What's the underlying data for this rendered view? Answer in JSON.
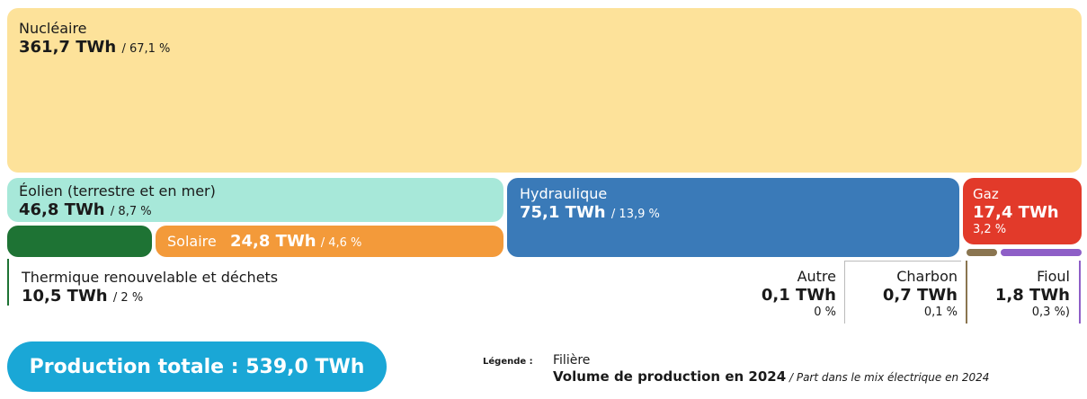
{
  "chart_data": {
    "type": "treemap",
    "unit": "TWh",
    "items": [
      {
        "name": "Nucléaire",
        "value": 361.7,
        "value_label": "361,7 TWh",
        "share_label": "/ 67,1 %",
        "color": "#fde29a"
      },
      {
        "name": "Éolien (terrestre et en mer)",
        "value": 46.8,
        "value_label": "46,8 TWh",
        "share_label": "/ 8,7 %",
        "color": "#a7e8d9"
      },
      {
        "name": "Hydraulique",
        "value": 75.1,
        "value_label": "75,1 TWh",
        "share_label": "/ 13,9 %",
        "color": "#3a7ab8"
      },
      {
        "name": "Gaz",
        "value": 17.4,
        "value_label": "17,4 TWh",
        "share_label": "3,2 %",
        "color": "#e23a2a"
      },
      {
        "name": "Solaire",
        "value": 24.8,
        "value_label": "24,8 TWh",
        "share_label": "/ 4,6 %",
        "color": "#f39a3a"
      },
      {
        "name": "Thermique renouvelable et déchets",
        "value": 10.5,
        "value_label": "10,5 TWh",
        "share_label": "/ 2 %",
        "color": "#1e7334"
      },
      {
        "name": "Autre",
        "value": 0.1,
        "value_label": "0,1 TWh",
        "share_label": "0 %",
        "color": "#ffffff"
      },
      {
        "name": "Charbon",
        "value": 0.7,
        "value_label": "0,7 TWh",
        "share_label": "0,1 %",
        "color": "#8a7550"
      },
      {
        "name": "Fioul",
        "value": 1.8,
        "value_label": "1,8 TWh",
        "share_label": "0,3 %)",
        "color": "#8e5fc7"
      }
    ]
  },
  "total": {
    "label": "Production totale : 539,0 TWh"
  },
  "legend": {
    "title": "Légende :",
    "line1": "Filière",
    "line2_bold": "Volume de production en 2024",
    "line2_rest": " / Part dans le mix électrique en 2024"
  },
  "colors": {
    "pill": "#1aa7d6",
    "dark_text": "#1a1a1a"
  }
}
